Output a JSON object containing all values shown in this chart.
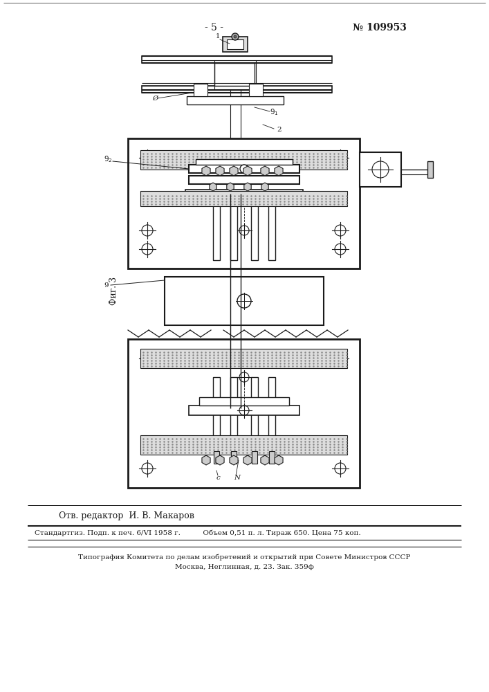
{
  "page_number": "- 5 -",
  "patent_number": "№ 109953",
  "fig_label": "Фиг. 3",
  "editor_line": "Отв. редактор  И. В. Макаров",
  "footer_line1": "Стандартгиз. Подп. к печ. 6/VI 1958 г.          Объем 0,51 п. л. Тираж 650. Цена 75 коп.",
  "footer_line2": "Типография Комитета по делам изобретений и открытий при Совете Министров СССР",
  "footer_line3": "Москва, Неглинная, д. 23. Зак. 359ф",
  "bg_color": "#ffffff",
  "line_color": "#1a1a1a"
}
